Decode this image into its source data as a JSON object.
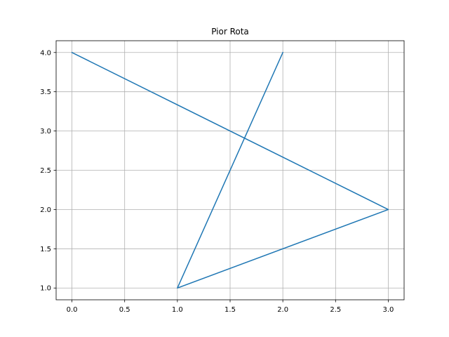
{
  "chart_data": {
    "type": "line",
    "title": "Pior Rota",
    "xlabel": "",
    "ylabel": "",
    "x": [
      0,
      3,
      1,
      2
    ],
    "series": [
      {
        "values": [
          4,
          2,
          1,
          4
        ],
        "color": "#1f77b4"
      }
    ],
    "xlim": [
      -0.15,
      3.15
    ],
    "ylim": [
      0.85,
      4.15
    ],
    "xticks": [
      0.0,
      0.5,
      1.0,
      1.5,
      2.0,
      2.5,
      3.0
    ],
    "yticks": [
      1.0,
      1.5,
      2.0,
      2.5,
      3.0,
      3.5,
      4.0
    ],
    "xtick_labels": [
      "0.0",
      "0.5",
      "1.0",
      "1.5",
      "2.0",
      "2.5",
      "3.0"
    ],
    "ytick_labels": [
      "1.0",
      "1.5",
      "2.0",
      "2.5",
      "3.0",
      "3.5",
      "4.0"
    ],
    "grid": true,
    "legend": false
  }
}
